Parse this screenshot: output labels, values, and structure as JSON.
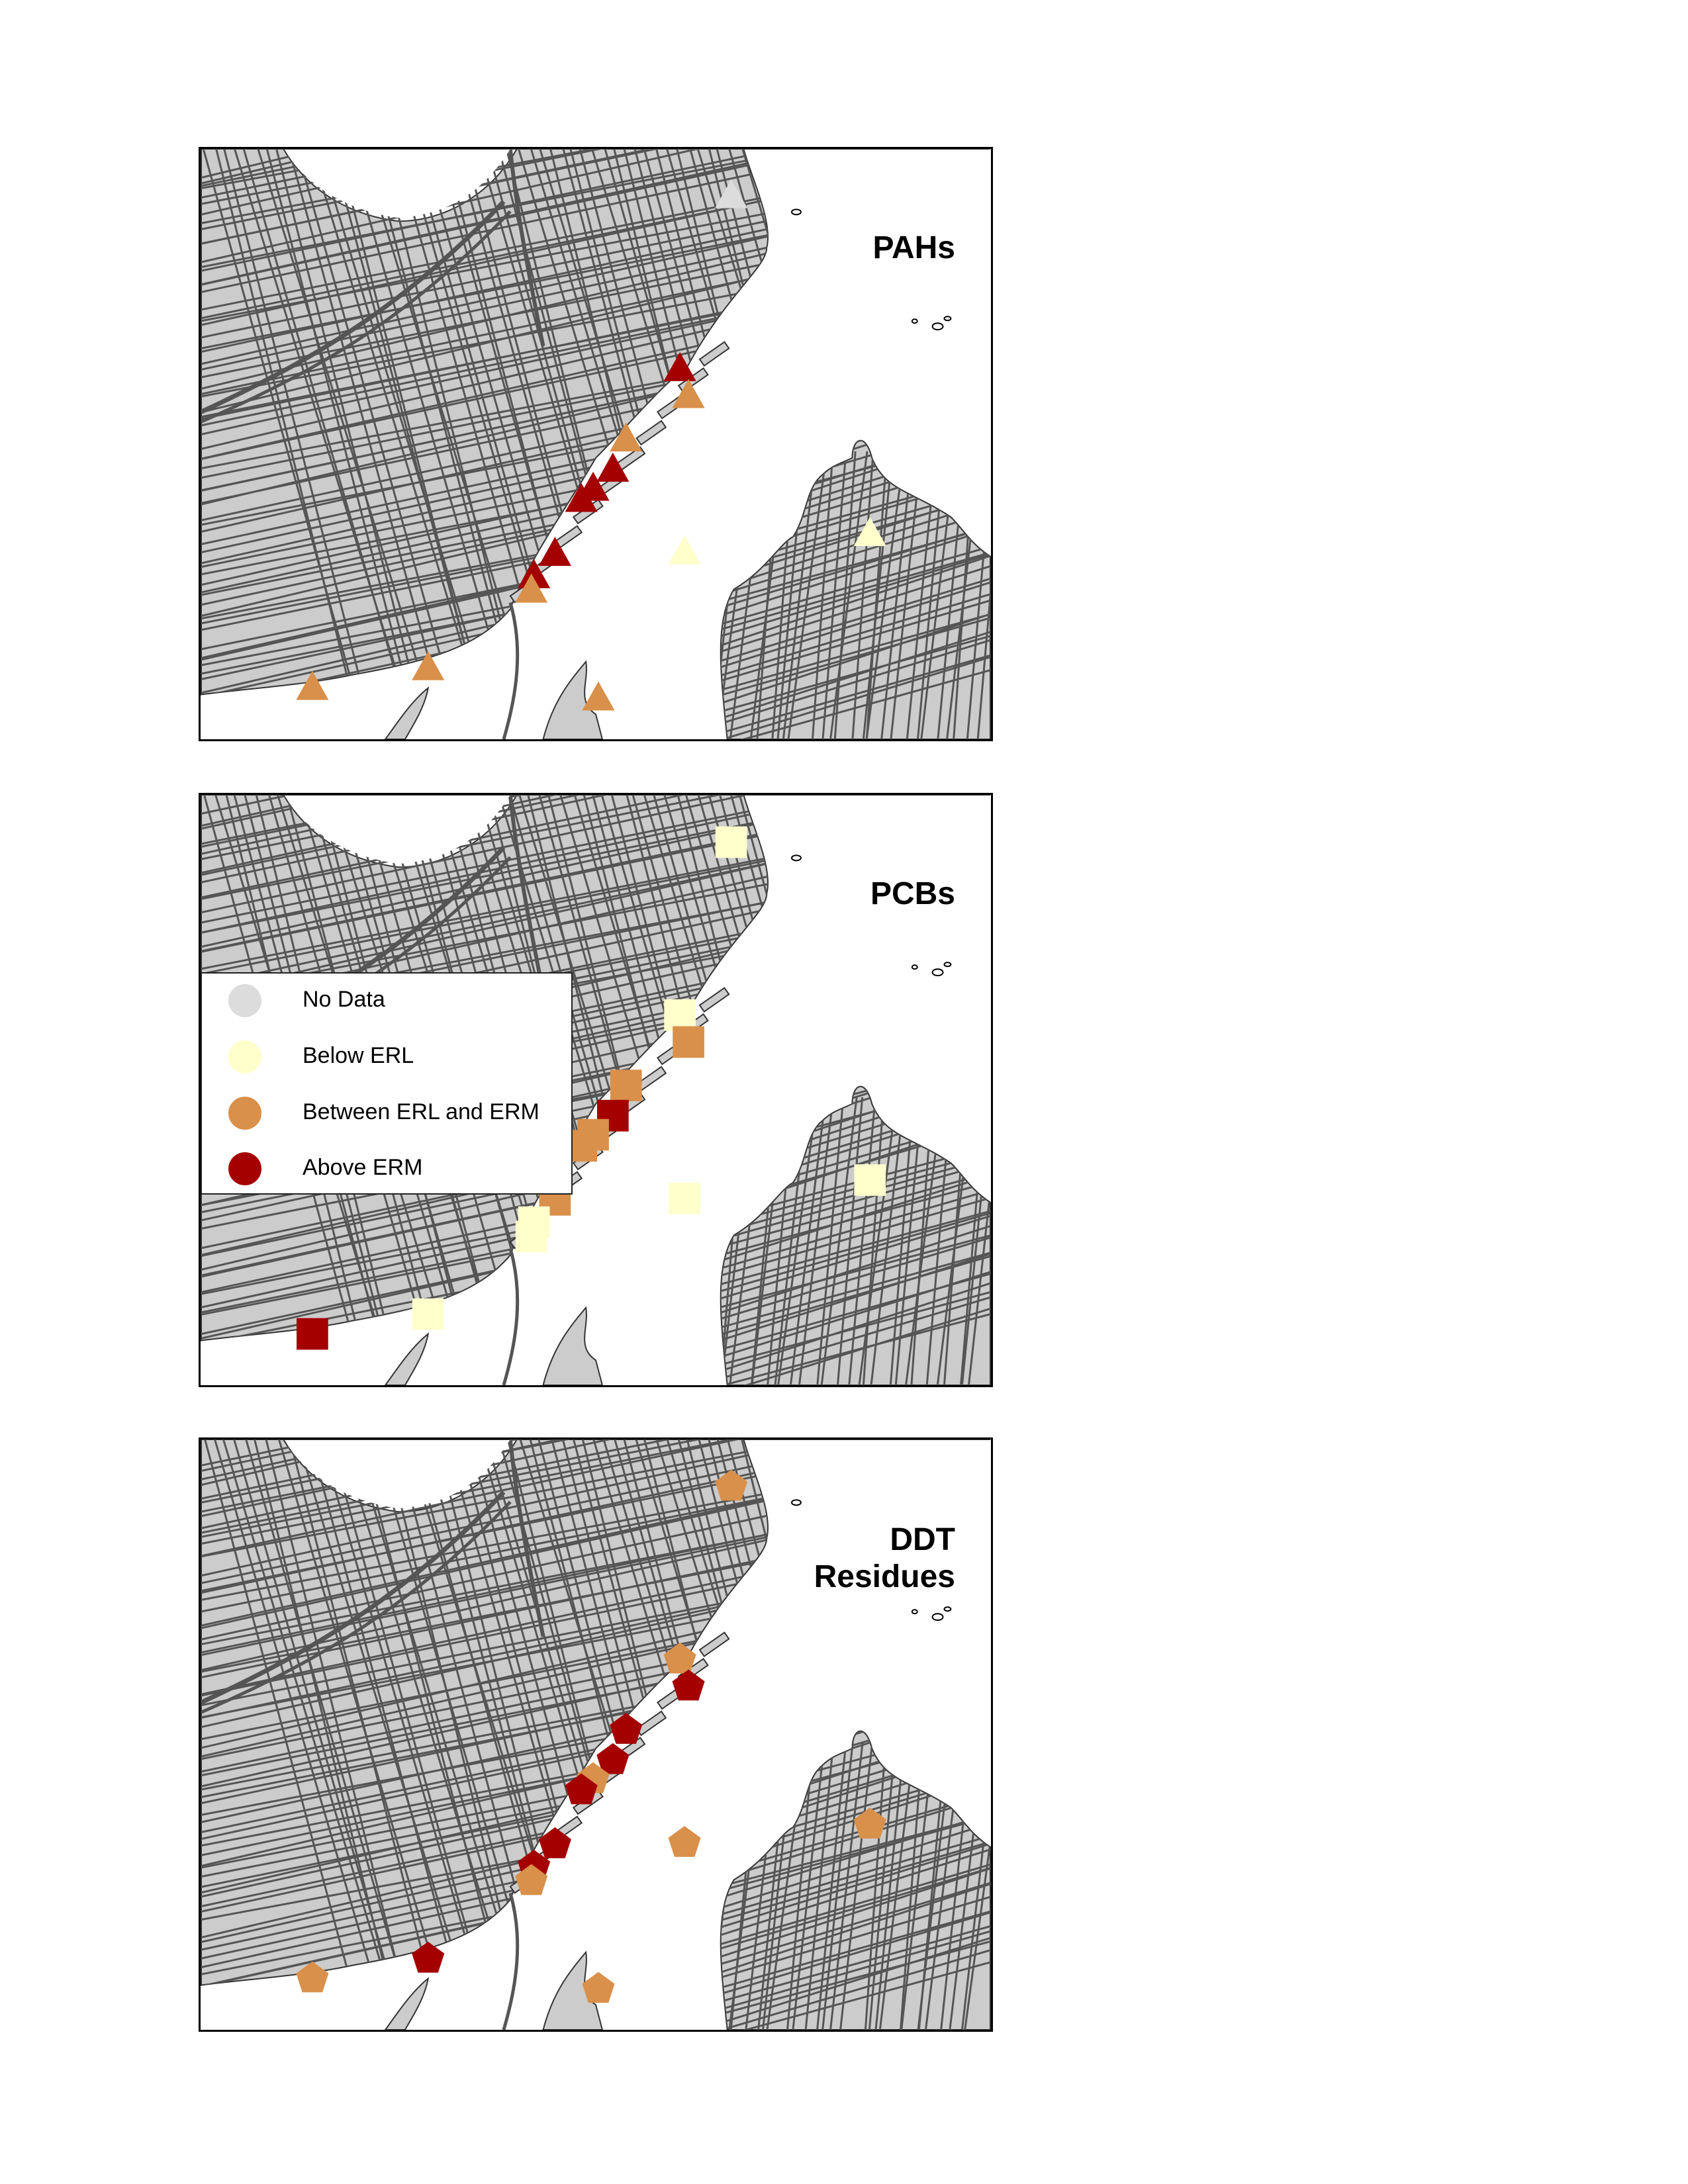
{
  "colors": {
    "land": "#cccccc",
    "roads": "#555555",
    "water": "#ffffff",
    "no_data": "#dcdcdc",
    "below_erl": "#ffffcc",
    "between_erl_erm": "#d9904a",
    "above_erm": "#a50000"
  },
  "legend": {
    "items": [
      {
        "label": "No Data",
        "category": "no_data"
      },
      {
        "label": "Below ERL",
        "category": "below_erl"
      },
      {
        "label": "Between ERL and ERM",
        "category": "between_erl_erm"
      },
      {
        "label": "Above ERM",
        "category": "above_erm"
      }
    ]
  },
  "panels": [
    {
      "title": "PAHs",
      "marker_shape": "triangle",
      "sites": [
        {
          "site": 1,
          "category": "no_data"
        },
        {
          "site": 2,
          "category": "above_erm"
        },
        {
          "site": 3,
          "category": "between_erl_erm"
        },
        {
          "site": 4,
          "category": "between_erl_erm"
        },
        {
          "site": 5,
          "category": "above_erm"
        },
        {
          "site": 6,
          "category": "above_erm"
        },
        {
          "site": 7,
          "category": "above_erm"
        },
        {
          "site": 8,
          "category": "above_erm"
        },
        {
          "site": 9,
          "category": "above_erm"
        },
        {
          "site": 10,
          "category": "between_erl_erm"
        },
        {
          "site": 11,
          "category": "below_erl"
        },
        {
          "site": 12,
          "category": "below_erl"
        },
        {
          "site": 13,
          "category": "between_erl_erm"
        },
        {
          "site": 14,
          "category": "between_erl_erm"
        },
        {
          "site": 15,
          "category": "between_erl_erm"
        }
      ]
    },
    {
      "title": "PCBs",
      "marker_shape": "square",
      "sites": [
        {
          "site": 1,
          "category": "below_erl"
        },
        {
          "site": 2,
          "category": "below_erl"
        },
        {
          "site": 3,
          "category": "between_erl_erm"
        },
        {
          "site": 4,
          "category": "between_erl_erm"
        },
        {
          "site": 5,
          "category": "above_erm"
        },
        {
          "site": 6,
          "category": "between_erl_erm"
        },
        {
          "site": 7,
          "category": "between_erl_erm"
        },
        {
          "site": 8,
          "category": "between_erl_erm"
        },
        {
          "site": 9,
          "category": "below_erl"
        },
        {
          "site": 10,
          "category": "below_erl"
        },
        {
          "site": 11,
          "category": "below_erl"
        },
        {
          "site": 12,
          "category": "below_erl"
        },
        {
          "site": 13,
          "category": "above_erm"
        },
        {
          "site": 14,
          "category": "below_erl"
        }
      ]
    },
    {
      "title": "DDT\nResidues",
      "marker_shape": "pentagon",
      "sites": [
        {
          "site": 1,
          "category": "between_erl_erm"
        },
        {
          "site": 2,
          "category": "between_erl_erm"
        },
        {
          "site": 3,
          "category": "above_erm"
        },
        {
          "site": 4,
          "category": "above_erm"
        },
        {
          "site": 5,
          "category": "above_erm"
        },
        {
          "site": 6,
          "category": "between_erl_erm"
        },
        {
          "site": 7,
          "category": "above_erm"
        },
        {
          "site": 8,
          "category": "above_erm"
        },
        {
          "site": 9,
          "category": "above_erm"
        },
        {
          "site": 10,
          "category": "between_erl_erm"
        },
        {
          "site": 11,
          "category": "between_erl_erm"
        },
        {
          "site": 12,
          "category": "between_erl_erm"
        },
        {
          "site": 13,
          "category": "between_erl_erm"
        },
        {
          "site": 14,
          "category": "above_erm"
        },
        {
          "site": 15,
          "category": "between_erl_erm"
        }
      ]
    }
  ]
}
